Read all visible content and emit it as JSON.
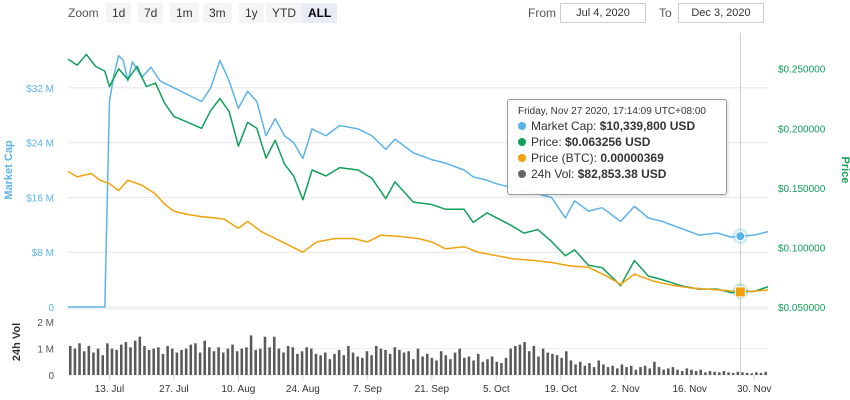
{
  "range_selector": {
    "zoom_label": "Zoom",
    "buttons": [
      {
        "label": "1d"
      },
      {
        "label": "7d"
      },
      {
        "label": "1m"
      },
      {
        "label": "3m"
      },
      {
        "label": "1y"
      },
      {
        "label": "YTD"
      },
      {
        "label": "ALL"
      }
    ],
    "active": "ALL",
    "from_label": "From",
    "from_value": "Jul 4, 2020",
    "to_label": "To",
    "to_value": "Dec 3, 2020"
  },
  "tooltip": {
    "header": "Friday, Nov 27 2020, 17:14:09 UTC+08:00",
    "rows": [
      {
        "label": "Market Cap: ",
        "value": "$10,339,800 USD",
        "color": "#5cb3e8"
      },
      {
        "label": "Price: ",
        "value": "$0.063256 USD",
        "color": "#129e5b"
      },
      {
        "label": "Price (BTC): ",
        "value": "0.00000369",
        "color": "#f2a20c"
      },
      {
        "label": "24h Vol: ",
        "value": "$82,853.38 USD",
        "color": "#666666"
      }
    ]
  },
  "chart_data": {
    "type": "line",
    "x_start": "2020-07-04",
    "x_end": "2020-12-03",
    "x_tick_labels": [
      "13. Jul",
      "27. Jul",
      "10. Aug",
      "24. Aug",
      "7. Sep",
      "21. Sep",
      "5. Oct",
      "19. Oct",
      "2. Nov",
      "16. Nov",
      "30. Nov"
    ],
    "x_tick_dates": [
      "2020-07-13",
      "2020-07-27",
      "2020-08-10",
      "2020-08-24",
      "2020-09-07",
      "2020-09-21",
      "2020-10-05",
      "2020-10-19",
      "2020-11-02",
      "2020-11-16",
      "2020-11-30"
    ],
    "left_axis": {
      "label": "Market Cap",
      "ticks": [
        "0",
        "$8 M",
        "$16 M",
        "$24 M",
        "$32 M"
      ],
      "min": 0,
      "max": 40000000,
      "color": "#5cb3e8"
    },
    "right_axis": {
      "label": "Price",
      "ticks": [
        "$0.050000",
        "$0.100000",
        "$0.150000",
        "$0.200000",
        "$0.250000"
      ],
      "min": 0.05,
      "max": 0.28,
      "color": "#129e5b"
    },
    "volume_axis": {
      "label": "24h Vol",
      "ticks": [
        "0",
        "1 M",
        "2 M"
      ],
      "min": 0,
      "max": 2500000
    },
    "series": [
      {
        "name": "Market Cap",
        "color": "#5cb3e8",
        "axis": "left",
        "points": [
          [
            "2020-07-04",
            0
          ],
          [
            "2020-07-10",
            0
          ],
          [
            "2020-07-12",
            0
          ],
          [
            "2020-07-13",
            30000000
          ],
          [
            "2020-07-14",
            34000000
          ],
          [
            "2020-07-15",
            36700000
          ],
          [
            "2020-07-16",
            36000000
          ],
          [
            "2020-07-17",
            33000000
          ],
          [
            "2020-07-18",
            35800000
          ],
          [
            "2020-07-20",
            33500000
          ],
          [
            "2020-07-22",
            35000000
          ],
          [
            "2020-07-24",
            33000000
          ],
          [
            "2020-07-27",
            32000000
          ],
          [
            "2020-07-30",
            31000000
          ],
          [
            "2020-08-02",
            30000000
          ],
          [
            "2020-08-04",
            32000000
          ],
          [
            "2020-08-06",
            36000000
          ],
          [
            "2020-08-08",
            33000000
          ],
          [
            "2020-08-10",
            29000000
          ],
          [
            "2020-08-12",
            31500000
          ],
          [
            "2020-08-14",
            30000000
          ],
          [
            "2020-08-16",
            25000000
          ],
          [
            "2020-08-18",
            27500000
          ],
          [
            "2020-08-20",
            25000000
          ],
          [
            "2020-08-22",
            24000000
          ],
          [
            "2020-08-24",
            21700000
          ],
          [
            "2020-08-26",
            26000000
          ],
          [
            "2020-08-29",
            25000000
          ],
          [
            "2020-09-01",
            26500000
          ],
          [
            "2020-09-05",
            26000000
          ],
          [
            "2020-09-08",
            25000000
          ],
          [
            "2020-09-11",
            23000000
          ],
          [
            "2020-09-13",
            24500000
          ],
          [
            "2020-09-17",
            22500000
          ],
          [
            "2020-09-21",
            21500000
          ],
          [
            "2020-09-24",
            21000000
          ],
          [
            "2020-09-28",
            20000000
          ],
          [
            "2020-09-30",
            19000000
          ],
          [
            "2020-10-03",
            18500000
          ],
          [
            "2020-10-05",
            18000000
          ],
          [
            "2020-10-08",
            17500000
          ],
          [
            "2020-10-11",
            17000000
          ],
          [
            "2020-10-14",
            16500000
          ],
          [
            "2020-10-17",
            16000000
          ],
          [
            "2020-10-20",
            13000000
          ],
          [
            "2020-10-22",
            15500000
          ],
          [
            "2020-10-25",
            14000000
          ],
          [
            "2020-10-28",
            14500000
          ],
          [
            "2020-11-01",
            12500000
          ],
          [
            "2020-11-04",
            14700000
          ],
          [
            "2020-11-07",
            13000000
          ],
          [
            "2020-11-10",
            12500000
          ],
          [
            "2020-11-14",
            11500000
          ],
          [
            "2020-11-18",
            10500000
          ],
          [
            "2020-11-22",
            10800000
          ],
          [
            "2020-11-25",
            10200000
          ],
          [
            "2020-11-27",
            10339800
          ],
          [
            "2020-11-30",
            10500000
          ],
          [
            "2020-12-03",
            11000000
          ]
        ]
      },
      {
        "name": "Price",
        "color": "#129e5b",
        "axis": "right",
        "points": [
          [
            "2020-07-04",
            0.258
          ],
          [
            "2020-07-06",
            0.253
          ],
          [
            "2020-07-08",
            0.262
          ],
          [
            "2020-07-10",
            0.252
          ],
          [
            "2020-07-12",
            0.248
          ],
          [
            "2020-07-13",
            0.235
          ],
          [
            "2020-07-15",
            0.25
          ],
          [
            "2020-07-17",
            0.241
          ],
          [
            "2020-07-19",
            0.252
          ],
          [
            "2020-07-21",
            0.235
          ],
          [
            "2020-07-23",
            0.238
          ],
          [
            "2020-07-25",
            0.221
          ],
          [
            "2020-07-27",
            0.21
          ],
          [
            "2020-07-30",
            0.205
          ],
          [
            "2020-08-02",
            0.2
          ],
          [
            "2020-08-04",
            0.215
          ],
          [
            "2020-08-06",
            0.225
          ],
          [
            "2020-08-08",
            0.214
          ],
          [
            "2020-08-10",
            0.185
          ],
          [
            "2020-08-12",
            0.205
          ],
          [
            "2020-08-14",
            0.2
          ],
          [
            "2020-08-16",
            0.175
          ],
          [
            "2020-08-18",
            0.19
          ],
          [
            "2020-08-20",
            0.17
          ],
          [
            "2020-08-22",
            0.16
          ],
          [
            "2020-08-24",
            0.14
          ],
          [
            "2020-08-26",
            0.165
          ],
          [
            "2020-08-29",
            0.16
          ],
          [
            "2020-09-01",
            0.167
          ],
          [
            "2020-09-05",
            0.165
          ],
          [
            "2020-09-08",
            0.158
          ],
          [
            "2020-09-11",
            0.141
          ],
          [
            "2020-09-13",
            0.155
          ],
          [
            "2020-09-17",
            0.138
          ],
          [
            "2020-09-21",
            0.136
          ],
          [
            "2020-09-24",
            0.132
          ],
          [
            "2020-09-28",
            0.132
          ],
          [
            "2020-09-30",
            0.121
          ],
          [
            "2020-10-03",
            0.129
          ],
          [
            "2020-10-05",
            0.125
          ],
          [
            "2020-10-08",
            0.119
          ],
          [
            "2020-10-11",
            0.112
          ],
          [
            "2020-10-14",
            0.115
          ],
          [
            "2020-10-17",
            0.105
          ],
          [
            "2020-10-20",
            0.093
          ],
          [
            "2020-10-22",
            0.098
          ],
          [
            "2020-10-25",
            0.085
          ],
          [
            "2020-10-28",
            0.083
          ],
          [
            "2020-11-01",
            0.068
          ],
          [
            "2020-11-04",
            0.089
          ],
          [
            "2020-11-07",
            0.076
          ],
          [
            "2020-11-10",
            0.073
          ],
          [
            "2020-11-14",
            0.068
          ],
          [
            "2020-11-18",
            0.065
          ],
          [
            "2020-11-22",
            0.065
          ],
          [
            "2020-11-25",
            0.062
          ],
          [
            "2020-11-27",
            0.063256
          ],
          [
            "2020-11-30",
            0.063
          ],
          [
            "2020-12-03",
            0.067
          ]
        ]
      },
      {
        "name": "Price (BTC)",
        "color": "#f2a20c",
        "axis": "left",
        "points": [
          [
            "2020-07-04",
            19800000
          ],
          [
            "2020-07-06",
            19000000
          ],
          [
            "2020-07-09",
            19500000
          ],
          [
            "2020-07-11",
            18500000
          ],
          [
            "2020-07-13",
            18000000
          ],
          [
            "2020-07-15",
            17000000
          ],
          [
            "2020-07-17",
            18500000
          ],
          [
            "2020-07-20",
            17800000
          ],
          [
            "2020-07-23",
            16500000
          ],
          [
            "2020-07-25",
            15000000
          ],
          [
            "2020-07-27",
            14000000
          ],
          [
            "2020-07-30",
            13500000
          ],
          [
            "2020-08-02",
            13200000
          ],
          [
            "2020-08-05",
            13000000
          ],
          [
            "2020-08-07",
            12800000
          ],
          [
            "2020-08-10",
            11500000
          ],
          [
            "2020-08-12",
            12500000
          ],
          [
            "2020-08-15",
            11000000
          ],
          [
            "2020-08-18",
            10000000
          ],
          [
            "2020-08-21",
            9000000
          ],
          [
            "2020-08-24",
            8000000
          ],
          [
            "2020-08-27",
            9500000
          ],
          [
            "2020-08-31",
            10000000
          ],
          [
            "2020-09-04",
            10000000
          ],
          [
            "2020-09-07",
            9500000
          ],
          [
            "2020-09-10",
            10500000
          ],
          [
            "2020-09-14",
            10300000
          ],
          [
            "2020-09-18",
            10000000
          ],
          [
            "2020-09-21",
            9500000
          ],
          [
            "2020-09-24",
            8500000
          ],
          [
            "2020-09-28",
            8800000
          ],
          [
            "2020-10-01",
            8000000
          ],
          [
            "2020-10-05",
            7500000
          ],
          [
            "2020-10-09",
            7000000
          ],
          [
            "2020-10-13",
            6800000
          ],
          [
            "2020-10-17",
            6500000
          ],
          [
            "2020-10-21",
            6000000
          ],
          [
            "2020-10-25",
            5800000
          ],
          [
            "2020-10-29",
            4500000
          ],
          [
            "2020-11-01",
            3300000
          ],
          [
            "2020-11-04",
            4800000
          ],
          [
            "2020-11-08",
            3800000
          ],
          [
            "2020-11-12",
            3200000
          ],
          [
            "2020-11-16",
            2800000
          ],
          [
            "2020-11-20",
            2600000
          ],
          [
            "2020-11-24",
            2400000
          ],
          [
            "2020-11-27",
            2200000
          ],
          [
            "2020-11-30",
            2300000
          ],
          [
            "2020-12-03",
            2500000
          ]
        ]
      },
      {
        "name": "24h Vol",
        "color": "#555555",
        "axis": "volume",
        "values": [
          1100000,
          1000000,
          1200000,
          900000,
          1100000,
          850000,
          1000000,
          750000,
          1200000,
          1000000,
          950000,
          1150000,
          1250000,
          1050000,
          1300000,
          1450000,
          1100000,
          950000,
          1000000,
          1050000,
          800000,
          1100000,
          1000000,
          850000,
          950000,
          1000000,
          1150000,
          1200000,
          850000,
          1300000,
          1050000,
          900000,
          1050000,
          850000,
          1000000,
          1150000,
          900000,
          1000000,
          1050000,
          1500000,
          950000,
          1000000,
          1450000,
          1050000,
          1450000,
          1000000,
          850000,
          1100000,
          1050000,
          800000,
          900000,
          1050000,
          1000000,
          800000,
          750000,
          850000,
          600000,
          800000,
          950000,
          750000,
          1100000,
          850000,
          700000,
          650000,
          900000,
          750000,
          1100000,
          1000000,
          950000,
          800000,
          1050000,
          950000,
          850000,
          900000,
          600000,
          1000000,
          700000,
          800000,
          650000,
          550000,
          900000,
          750000,
          600000,
          850000,
          1000000,
          650000,
          700000,
          550000,
          800000,
          500000,
          600000,
          700000,
          500000,
          450000,
          650000,
          1000000,
          1100000,
          1150000,
          1250000,
          900000,
          1100000,
          700000,
          1000000,
          850000,
          800000,
          750000,
          650000,
          900000,
          550000,
          400000,
          500000,
          350000,
          450000,
          300000,
          550000,
          400000,
          300000,
          350000,
          250000,
          400000,
          300000,
          350000,
          200000,
          300000,
          350000,
          250000,
          500000,
          300000,
          200000,
          250000,
          300000,
          200000,
          150000,
          250000,
          200000,
          150000,
          200000,
          100000,
          150000,
          120000,
          100000,
          150000,
          100000,
          80000,
          120000,
          100000,
          80000,
          60000,
          100000,
          80000,
          120000
        ]
      }
    ],
    "crosshair_date": "2020-11-27"
  }
}
